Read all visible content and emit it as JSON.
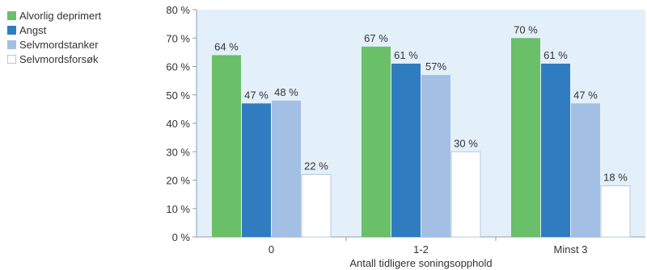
{
  "chart_data": {
    "type": "bar",
    "title": "",
    "xlabel": "Antall tidligere soningsopphold",
    "ylabel": "",
    "categories": [
      "0",
      "1-2",
      "Minst 3"
    ],
    "ylim": [
      0,
      80
    ],
    "yticks": [
      0,
      10,
      20,
      30,
      40,
      50,
      60,
      70,
      80
    ],
    "ytick_labels": [
      "0 %",
      "10 %",
      "20 %",
      "30 %",
      "40 %",
      "50 %",
      "60 %",
      "70 %",
      "80 %"
    ],
    "grid": false,
    "legend_position": "top-left",
    "series": [
      {
        "name": "Alvorlig deprimert",
        "color": "#6abf69",
        "values": [
          64,
          67,
          70
        ],
        "labels": [
          "64 %",
          "67 %",
          "70 %"
        ]
      },
      {
        "name": "Angst",
        "color": "#2f7dc0",
        "values": [
          47,
          61,
          61
        ],
        "labels": [
          "47 %",
          "61 %",
          "61 %"
        ]
      },
      {
        "name": "Selvmordstanker",
        "color": "#a3bfe3",
        "values": [
          48,
          57,
          47
        ],
        "labels": [
          "48 %",
          "57%",
          "47 %"
        ]
      },
      {
        "name": "Selvmordsforsøk",
        "color": "#ffffff",
        "values": [
          22,
          30,
          18
        ],
        "labels": [
          "22 %",
          "30 %",
          "18 %"
        ]
      }
    ]
  }
}
